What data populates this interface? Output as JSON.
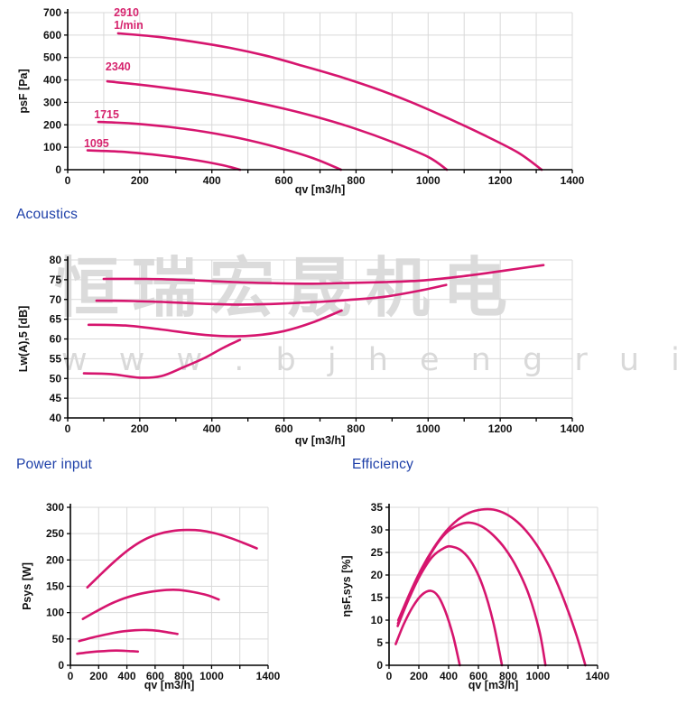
{
  "watermark": {
    "line1": "恒瑞宏晟机电",
    "line2": "w w w . b j h e n g r u i . c n"
  },
  "colors": {
    "curve": "#d6156e",
    "annotation": "#d6246e",
    "heading": "#1d3fa8",
    "axis": "#000000",
    "tick_text": "#111111",
    "grid": "#d9d9d9",
    "watermark": "#d0d0d0"
  },
  "chart_data": [
    {
      "id": "pressure",
      "type": "line",
      "title": "",
      "xlabel": "qv [m3/h]",
      "ylabel": "psF [Pa]",
      "xlim": [
        0,
        1400
      ],
      "ylim": [
        0,
        700
      ],
      "grid": true,
      "xgrid_step": 100,
      "ygrid_step": 100,
      "xminor_step": 100,
      "xtick_labels": [
        {
          "v": 0,
          "t": "0"
        },
        {
          "v": 200,
          "t": "200"
        },
        {
          "v": 400,
          "t": "400"
        },
        {
          "v": 600,
          "t": "600"
        },
        {
          "v": 800,
          "t": "800"
        },
        {
          "v": 1000,
          "t": "1000"
        },
        {
          "v": 1200,
          "t": "1200"
        },
        {
          "v": 1400,
          "t": "1400"
        }
      ],
      "ytick_labels": [
        {
          "v": 0,
          "t": "0"
        },
        {
          "v": 100,
          "t": "100"
        },
        {
          "v": 200,
          "t": "200"
        },
        {
          "v": 300,
          "t": "300"
        },
        {
          "v": 400,
          "t": "400"
        },
        {
          "v": 500,
          "t": "500"
        },
        {
          "v": 600,
          "t": "600"
        },
        {
          "v": 700,
          "t": "700"
        }
      ],
      "annotations": [
        {
          "text": "2910",
          "x": 128,
          "y": 684
        },
        {
          "text": "1/min",
          "x": 128,
          "y": 628
        },
        {
          "text": "2340",
          "x": 105,
          "y": 443
        },
        {
          "text": "1715",
          "x": 73,
          "y": 230
        },
        {
          "text": "1095",
          "x": 45,
          "y": 100
        }
      ],
      "series": [
        {
          "name": "2910 1/min",
          "points": [
            [
              140,
              608
            ],
            [
              250,
              592
            ],
            [
              350,
              570
            ],
            [
              450,
              543
            ],
            [
              550,
              508
            ],
            [
              650,
              464
            ],
            [
              750,
              417
            ],
            [
              850,
              364
            ],
            [
              950,
              303
            ],
            [
              1050,
              233
            ],
            [
              1150,
              158
            ],
            [
              1250,
              76
            ],
            [
              1315,
              0
            ]
          ]
        },
        {
          "name": "2340 1/min",
          "points": [
            [
              110,
              394
            ],
            [
              200,
              379
            ],
            [
              300,
              359
            ],
            [
              400,
              336
            ],
            [
              500,
              307
            ],
            [
              600,
              272
            ],
            [
              700,
              231
            ],
            [
              800,
              182
            ],
            [
              900,
              124
            ],
            [
              1000,
              57
            ],
            [
              1052,
              0
            ]
          ]
        },
        {
          "name": "1715 1/min",
          "points": [
            [
              85,
              213
            ],
            [
              180,
              206
            ],
            [
              280,
              191
            ],
            [
              380,
              169
            ],
            [
              480,
              139
            ],
            [
              580,
              100
            ],
            [
              680,
              52
            ],
            [
              758,
              0
            ]
          ]
        },
        {
          "name": "1095 1/min",
          "points": [
            [
              55,
              86
            ],
            [
              150,
              80
            ],
            [
              250,
              65
            ],
            [
              350,
              44
            ],
            [
              430,
              20
            ],
            [
              478,
              0
            ]
          ]
        }
      ]
    },
    {
      "id": "acoustics",
      "type": "line",
      "title": "Acoustics",
      "xlabel": "qv [m3/h]",
      "ylabel": "Lw(A),5 [dB]",
      "xlim": [
        0,
        1400
      ],
      "ylim": [
        40,
        80
      ],
      "grid": true,
      "xgrid_step": 200,
      "ygrid_step": 5,
      "xminor_step": 100,
      "xtick_labels": [
        {
          "v": 0,
          "t": "0"
        },
        {
          "v": 200,
          "t": "200"
        },
        {
          "v": 400,
          "t": "400"
        },
        {
          "v": 600,
          "t": "600"
        },
        {
          "v": 800,
          "t": "800"
        },
        {
          "v": 1000,
          "t": "1000"
        },
        {
          "v": 1200,
          "t": "1200"
        },
        {
          "v": 1400,
          "t": "1400"
        }
      ],
      "ytick_labels": [
        {
          "v": 40,
          "t": "40"
        },
        {
          "v": 45,
          "t": "45"
        },
        {
          "v": 50,
          "t": "50"
        },
        {
          "v": 55,
          "t": "55"
        },
        {
          "v": 60,
          "t": "60"
        },
        {
          "v": 65,
          "t": "65"
        },
        {
          "v": 70,
          "t": "70"
        },
        {
          "v": 75,
          "t": "75"
        },
        {
          "v": 80,
          "t": "80"
        }
      ],
      "annotations": [],
      "series": [
        {
          "name": "2910 1/min",
          "points": [
            [
              100,
              75.2
            ],
            [
              220,
              75.2
            ],
            [
              340,
              74.9
            ],
            [
              460,
              74.4
            ],
            [
              580,
              74.1
            ],
            [
              680,
              74.0
            ],
            [
              780,
              74.2
            ],
            [
              880,
              74.4
            ],
            [
              980,
              74.8
            ],
            [
              1080,
              75.7
            ],
            [
              1180,
              76.9
            ],
            [
              1280,
              78.2
            ],
            [
              1320,
              78.7
            ]
          ]
        },
        {
          "name": "2340 1/min",
          "points": [
            [
              80,
              69.7
            ],
            [
              180,
              69.6
            ],
            [
              280,
              69.3
            ],
            [
              380,
              68.9
            ],
            [
              480,
              68.7
            ],
            [
              580,
              68.9
            ],
            [
              680,
              69.3
            ],
            [
              780,
              69.9
            ],
            [
              880,
              70.7
            ],
            [
              980,
              72.3
            ],
            [
              1050,
              73.7
            ]
          ]
        },
        {
          "name": "1715 1/min",
          "points": [
            [
              58,
              63.6
            ],
            [
              160,
              63.4
            ],
            [
              260,
              62.4
            ],
            [
              360,
              61.2
            ],
            [
              440,
              60.7
            ],
            [
              520,
              60.9
            ],
            [
              600,
              62.0
            ],
            [
              680,
              64.2
            ],
            [
              760,
              67.2
            ]
          ]
        },
        {
          "name": "1095 1/min",
          "points": [
            [
              45,
              51.3
            ],
            [
              120,
              51.1
            ],
            [
              200,
              50.2
            ],
            [
              260,
              50.6
            ],
            [
              320,
              52.8
            ],
            [
              380,
              55.2
            ],
            [
              430,
              57.7
            ],
            [
              478,
              59.8
            ]
          ]
        }
      ]
    },
    {
      "id": "power",
      "type": "line",
      "title": "Power input",
      "xlabel": "qv [m3/h]",
      "ylabel": "Psys [W]",
      "xlim": [
        0,
        1400
      ],
      "ylim": [
        0,
        300
      ],
      "grid": true,
      "xgrid_step": 200,
      "ygrid_step": 50,
      "xminor_step": 200,
      "xtick_labels": [
        {
          "v": 0,
          "t": "0"
        },
        {
          "v": 200,
          "t": "200"
        },
        {
          "v": 400,
          "t": "400"
        },
        {
          "v": 600,
          "t": "600"
        },
        {
          "v": 800,
          "t": "800"
        },
        {
          "v": 1000,
          "t": "1000"
        },
        {
          "v": 1200,
          "t": ""
        },
        {
          "v": 1400,
          "t": "1400"
        }
      ],
      "ytick_labels": [
        {
          "v": 0,
          "t": "0"
        },
        {
          "v": 50,
          "t": "50"
        },
        {
          "v": 100,
          "t": "100"
        },
        {
          "v": 150,
          "t": "150"
        },
        {
          "v": 200,
          "t": "200"
        },
        {
          "v": 250,
          "t": "250"
        },
        {
          "v": 300,
          "t": "300"
        }
      ],
      "annotations": [],
      "series": [
        {
          "name": "2910 1/min",
          "points": [
            [
              120,
              148
            ],
            [
              220,
              174
            ],
            [
              320,
              199
            ],
            [
              420,
              221
            ],
            [
              520,
              238
            ],
            [
              620,
              249
            ],
            [
              720,
              255
            ],
            [
              820,
              257
            ],
            [
              920,
              256
            ],
            [
              1020,
              251
            ],
            [
              1120,
              243
            ],
            [
              1220,
              233
            ],
            [
              1320,
              222
            ]
          ]
        },
        {
          "name": "2340 1/min",
          "points": [
            [
              88,
              88
            ],
            [
              180,
              102
            ],
            [
              280,
              116
            ],
            [
              380,
              127
            ],
            [
              480,
              135
            ],
            [
              580,
              140
            ],
            [
              680,
              143
            ],
            [
              770,
              143
            ],
            [
              870,
              139
            ],
            [
              970,
              133
            ],
            [
              1050,
              125
            ]
          ]
        },
        {
          "name": "1715 1/min",
          "points": [
            [
              62,
              46
            ],
            [
              160,
              53
            ],
            [
              260,
              59
            ],
            [
              360,
              64
            ],
            [
              460,
              66.5
            ],
            [
              540,
              67
            ],
            [
              620,
              65.5
            ],
            [
              700,
              62
            ],
            [
              758,
              59.5
            ]
          ]
        },
        {
          "name": "1095 1/min",
          "points": [
            [
              48,
              22
            ],
            [
              140,
              25
            ],
            [
              240,
              27
            ],
            [
              330,
              28
            ],
            [
              420,
              27
            ],
            [
              478,
              26
            ]
          ]
        }
      ]
    },
    {
      "id": "efficiency",
      "type": "line",
      "title": "Efficiency",
      "xlabel": "qv [m3/h]",
      "ylabel": "ηsF,sys [%]",
      "xlim": [
        0,
        1400
      ],
      "ylim": [
        0,
        35
      ],
      "grid": true,
      "xgrid_step": 200,
      "ygrid_step": 5,
      "xminor_step": 200,
      "xtick_labels": [
        {
          "v": 0,
          "t": "0"
        },
        {
          "v": 200,
          "t": "200"
        },
        {
          "v": 400,
          "t": "400"
        },
        {
          "v": 600,
          "t": "600"
        },
        {
          "v": 800,
          "t": "800"
        },
        {
          "v": 1000,
          "t": "1000"
        },
        {
          "v": 1200,
          "t": ""
        },
        {
          "v": 1400,
          "t": "1400"
        }
      ],
      "ytick_labels": [
        {
          "v": 0,
          "t": "0"
        },
        {
          "v": 5,
          "t": "5"
        },
        {
          "v": 10,
          "t": "10"
        },
        {
          "v": 15,
          "t": "15"
        },
        {
          "v": 20,
          "t": "20"
        },
        {
          "v": 25,
          "t": "25"
        },
        {
          "v": 30,
          "t": "30"
        },
        {
          "v": 35,
          "t": "35"
        }
      ],
      "annotations": [],
      "series": [
        {
          "name": "2910 1/min",
          "points": [
            [
              62,
              10
            ],
            [
              140,
              16
            ],
            [
              220,
              21.5
            ],
            [
              300,
              26
            ],
            [
              380,
              29.6
            ],
            [
              460,
              32.2
            ],
            [
              540,
              33.8
            ],
            [
              620,
              34.5
            ],
            [
              700,
              34.5
            ],
            [
              780,
              33.6
            ],
            [
              860,
              31.8
            ],
            [
              940,
              29
            ],
            [
              1020,
              25.2
            ],
            [
              1100,
              20.3
            ],
            [
              1180,
              14
            ],
            [
              1260,
              6.5
            ],
            [
              1318,
              0
            ]
          ]
        },
        {
          "name": "2340 1/min",
          "points": [
            [
              60,
              9.3
            ],
            [
              140,
              15.5
            ],
            [
              220,
              21
            ],
            [
              300,
              25.8
            ],
            [
              380,
              29.2
            ],
            [
              460,
              31
            ],
            [
              540,
              31.6
            ],
            [
              620,
              30.8
            ],
            [
              700,
              28.8
            ],
            [
              780,
              25.8
            ],
            [
              860,
              21.5
            ],
            [
              940,
              15.5
            ],
            [
              1010,
              7.5
            ],
            [
              1050,
              0
            ]
          ]
        },
        {
          "name": "1715 1/min",
          "points": [
            [
              58,
              8.7
            ],
            [
              130,
              14.5
            ],
            [
              210,
              20
            ],
            [
              290,
              24
            ],
            [
              370,
              26
            ],
            [
              420,
              26.3
            ],
            [
              490,
              25.3
            ],
            [
              560,
              22.5
            ],
            [
              630,
              17.5
            ],
            [
              700,
              9.5
            ],
            [
              758,
              0
            ]
          ]
        },
        {
          "name": "1095 1/min",
          "points": [
            [
              45,
              4.7
            ],
            [
              100,
              9.2
            ],
            [
              160,
              13
            ],
            [
              220,
              15.6
            ],
            [
              280,
              16.5
            ],
            [
              330,
              15.3
            ],
            [
              380,
              11.8
            ],
            [
              430,
              6.5
            ],
            [
              475,
              0
            ]
          ]
        }
      ]
    }
  ]
}
